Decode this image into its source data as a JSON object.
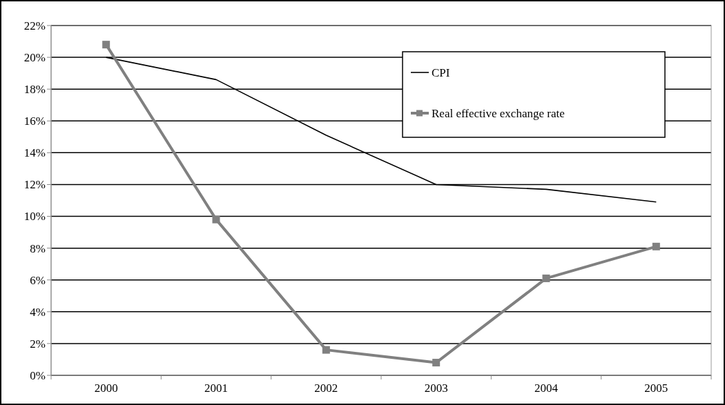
{
  "chart_data": {
    "type": "line",
    "categories": [
      "2000",
      "2001",
      "2002",
      "2003",
      "2004",
      "2005"
    ],
    "series": [
      {
        "name": "CPI",
        "color": "#000000",
        "values": [
          20.0,
          18.6,
          15.1,
          12.0,
          11.7,
          10.9
        ],
        "marker": "none"
      },
      {
        "name": "Real effective exchange rate",
        "color": "#808080",
        "values": [
          20.8,
          9.8,
          1.6,
          0.8,
          6.1,
          8.1
        ],
        "marker": "square"
      }
    ],
    "ylim": [
      0,
      22
    ],
    "yticks": [
      {
        "value": 0,
        "label": "0%"
      },
      {
        "value": 2,
        "label": "2%"
      },
      {
        "value": 4,
        "label": "4%"
      },
      {
        "value": 6,
        "label": "6%"
      },
      {
        "value": 8,
        "label": "8%"
      },
      {
        "value": 10,
        "label": "10%"
      },
      {
        "value": 12,
        "label": "12%"
      },
      {
        "value": 14,
        "label": "14%"
      },
      {
        "value": 16,
        "label": "16%"
      },
      {
        "value": 18,
        "label": "18%"
      },
      {
        "value": 20,
        "label": "20%"
      },
      {
        "value": 22,
        "label": "22%"
      }
    ],
    "grid": "y",
    "legend": "top right"
  }
}
